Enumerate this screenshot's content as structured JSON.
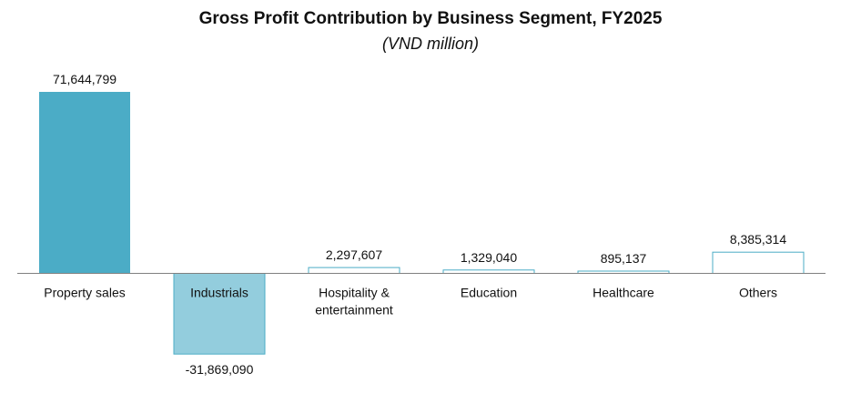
{
  "title": "Gross Profit Contribution by Business Segment, FY2025",
  "subtitle": "(VND million)",
  "colors": {
    "property": "#4bacc6",
    "industrials": "#93cddd",
    "outline": "#4bacc6",
    "axis": "#808080"
  },
  "chart_data": {
    "type": "bar",
    "title": "Gross Profit Contribution by Business Segment, FY2025",
    "subtitle": "(VND million)",
    "xlabel": "",
    "ylabel": "",
    "grid": false,
    "legend": "none",
    "categories": [
      [
        "Property sales"
      ],
      [
        "Industrials"
      ],
      [
        "Hospitality &",
        "entertainment"
      ],
      [
        "Education"
      ],
      [
        "Healthcare"
      ],
      [
        "Others"
      ]
    ],
    "values": [
      71644799,
      -31869090,
      2297607,
      1329040,
      895137,
      8385314
    ],
    "value_labels": [
      "71,644,799",
      "-31,869,090",
      "2,297,607",
      "1,329,040",
      "895,137",
      "8,385,314"
    ],
    "styles": [
      "solid-dark",
      "solid-light",
      "outline",
      "outline",
      "outline",
      "outline"
    ],
    "ylim": [
      -31869090,
      71644799
    ]
  }
}
